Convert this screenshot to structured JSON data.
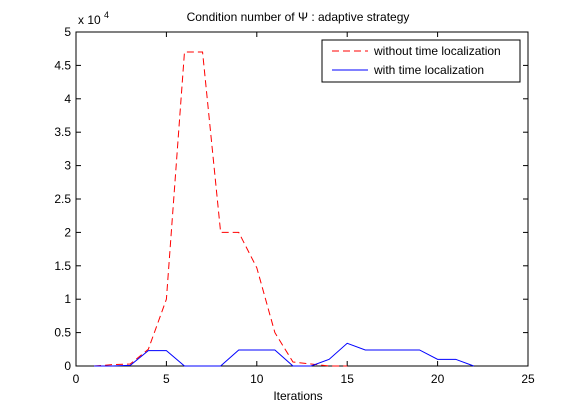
{
  "chart_data": {
    "type": "line",
    "title": "Condition number of Ψ : adaptive strategy",
    "xlabel": "Iterations",
    "ylabel": "",
    "y_multiplier_label": "x 10",
    "y_multiplier_exponent": "4",
    "xlim": [
      0,
      25
    ],
    "ylim": [
      0,
      50000
    ],
    "x_ticks": [
      0,
      5,
      10,
      15,
      20,
      25
    ],
    "x_tick_labels": [
      "0",
      "5",
      "10",
      "15",
      "20",
      "25"
    ],
    "y_ticks": [
      0,
      5000,
      10000,
      15000,
      20000,
      25000,
      30000,
      35000,
      40000,
      45000,
      50000
    ],
    "y_tick_labels": [
      "0",
      "0.5",
      "1",
      "1.5",
      "2",
      "2.5",
      "3",
      "3.5",
      "4",
      "4.5",
      "5"
    ],
    "grid": false,
    "legend_position": "top-right",
    "series": [
      {
        "name": "without time localization",
        "color": "#ff0000",
        "dash": "dashed",
        "x": [
          1,
          2,
          3,
          4,
          5,
          6,
          7,
          8,
          9,
          10,
          11,
          12,
          13,
          14,
          15
        ],
        "y": [
          0,
          200,
          300,
          2500,
          10000,
          47000,
          47000,
          20000,
          20000,
          14700,
          5000,
          600,
          300,
          0,
          0
        ]
      },
      {
        "name": "with time localization",
        "color": "#0000ff",
        "dash": "solid",
        "x": [
          1,
          2,
          3,
          4,
          5,
          6,
          7,
          8,
          9,
          10,
          11,
          12,
          13,
          14,
          15,
          16,
          17,
          18,
          19,
          20,
          21,
          22
        ],
        "y": [
          0,
          0,
          100,
          2300,
          2300,
          0,
          0,
          0,
          2400,
          2400,
          2400,
          0,
          0,
          1000,
          3400,
          2400,
          2400,
          2400,
          2400,
          1000,
          1000,
          0
        ]
      }
    ]
  }
}
